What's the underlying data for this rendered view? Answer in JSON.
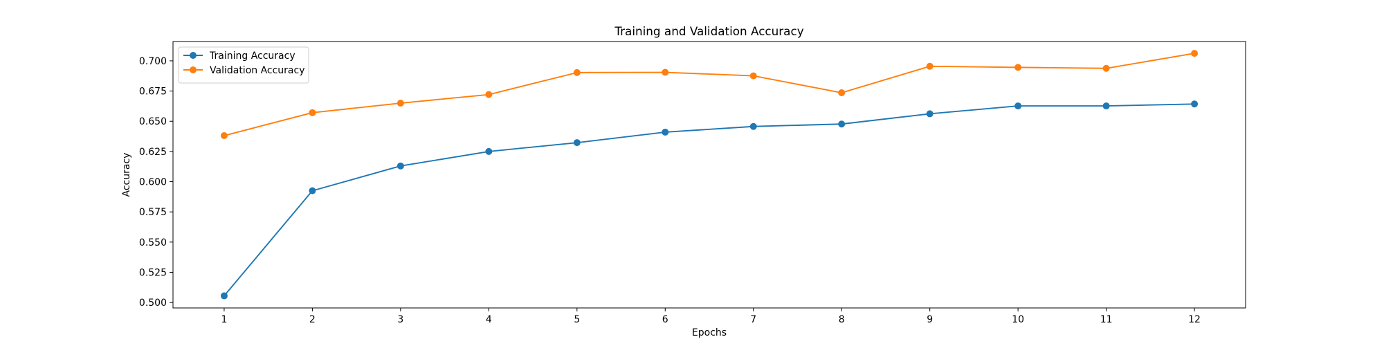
{
  "chart_data": {
    "type": "line",
    "title": "Training and Validation Accuracy",
    "xlabel": "Epochs",
    "ylabel": "Accuracy",
    "x": [
      1,
      2,
      3,
      4,
      5,
      6,
      7,
      8,
      9,
      10,
      11,
      12
    ],
    "xlim": [
      0.42,
      12.58
    ],
    "ylim": [
      0.4955,
      0.716
    ],
    "xticks": [
      "1",
      "2",
      "3",
      "4",
      "5",
      "6",
      "7",
      "8",
      "9",
      "10",
      "11",
      "12"
    ],
    "yticks": [
      0.5,
      0.525,
      0.55,
      0.575,
      0.6,
      0.625,
      0.65,
      0.675,
      0.7
    ],
    "ytick_labels": [
      "0.500",
      "0.525",
      "0.550",
      "0.575",
      "0.600",
      "0.625",
      "0.650",
      "0.675",
      "0.700"
    ],
    "grid": false,
    "legend_position": "top-left",
    "series": [
      {
        "name": "Training Accuracy",
        "color": "#1f77b4",
        "marker": "circle",
        "values": [
          0.5055,
          0.5925,
          0.613,
          0.625,
          0.6323,
          0.641,
          0.6457,
          0.6477,
          0.6562,
          0.6627,
          0.6627,
          0.6643
        ]
      },
      {
        "name": "Validation Accuracy",
        "color": "#ff7f0e",
        "marker": "circle",
        "values": [
          0.6381,
          0.6571,
          0.665,
          0.6721,
          0.6903,
          0.6905,
          0.6876,
          0.6736,
          0.6955,
          0.6946,
          0.6938,
          0.7062
        ]
      }
    ]
  }
}
